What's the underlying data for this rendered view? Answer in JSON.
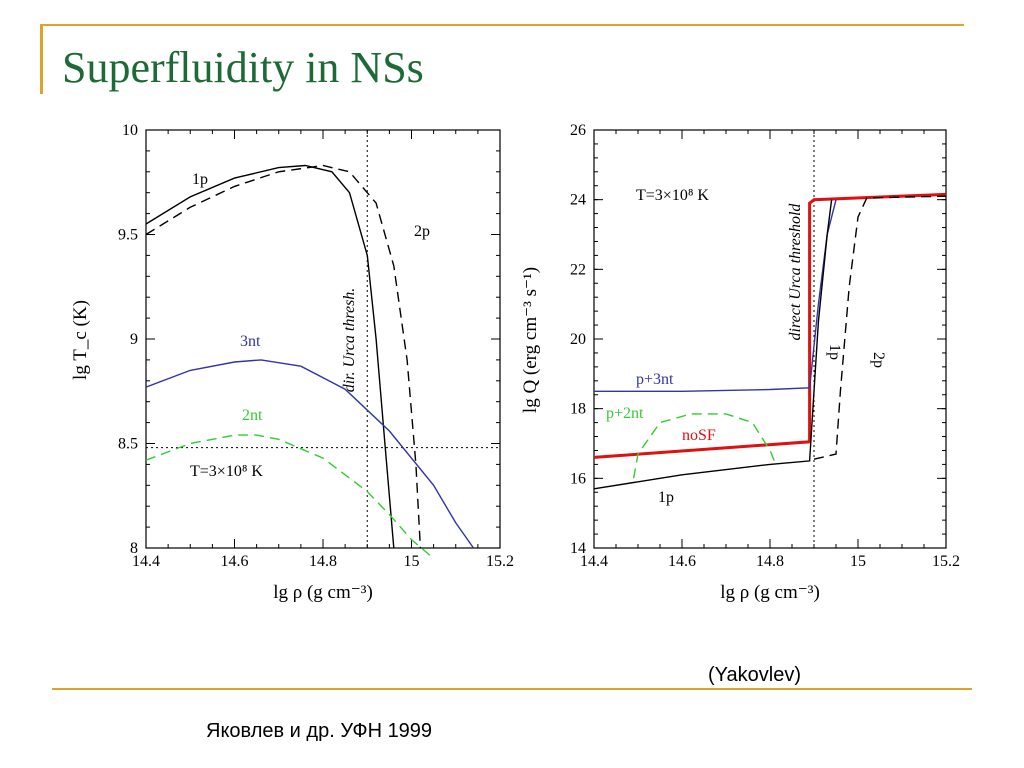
{
  "slide": {
    "title": "Superfluidity in NSs",
    "credit": "(Yakovlev)",
    "reference": "Яковлев и др. УФН 1999"
  },
  "colors": {
    "accent": "#e0a32a",
    "title": "#1e6a37",
    "blue": "#3333aa",
    "green": "#33cc33",
    "red": "#dd1111"
  },
  "chart_data": [
    {
      "type": "line",
      "xlabel": "lg ρ (g cm⁻³)",
      "ylabel": "lg T_c (K)",
      "xlim": [
        14.4,
        15.2
      ],
      "ylim": [
        8,
        10
      ],
      "xticks": [
        "14.4",
        "14.6",
        "14.8",
        "15",
        "15.2"
      ],
      "yticks": [
        "8",
        "8.5",
        "9",
        "9.5",
        "10"
      ],
      "annotations": {
        "temperature": "T=3×10⁸ K",
        "threshold": "dir. Urca thresh."
      },
      "threshold_x": 14.9,
      "hline_y": 8.48,
      "series": [
        {
          "name": "1p",
          "style": "solid",
          "color": "#000000",
          "x": [
            14.4,
            14.5,
            14.6,
            14.7,
            14.76,
            14.82,
            14.86,
            14.9,
            14.92,
            14.94,
            14.96
          ],
          "y": [
            9.55,
            9.68,
            9.77,
            9.82,
            9.83,
            9.8,
            9.7,
            9.4,
            9.0,
            8.5,
            8.0
          ]
        },
        {
          "name": "2p",
          "style": "dashed",
          "color": "#000000",
          "x": [
            14.4,
            14.5,
            14.6,
            14.7,
            14.8,
            14.86,
            14.92,
            14.96,
            14.99,
            15.01,
            15.02
          ],
          "y": [
            9.5,
            9.63,
            9.73,
            9.8,
            9.83,
            9.8,
            9.65,
            9.35,
            8.9,
            8.4,
            8.0
          ]
        },
        {
          "name": "3nt",
          "style": "solid",
          "color": "#3333aa",
          "x": [
            14.4,
            14.5,
            14.6,
            14.66,
            14.75,
            14.85,
            14.95,
            15.05,
            15.1,
            15.14
          ],
          "y": [
            8.77,
            8.85,
            8.89,
            8.9,
            8.87,
            8.76,
            8.56,
            8.3,
            8.12,
            8.0
          ]
        },
        {
          "name": "2nt",
          "style": "dashed",
          "color": "#33cc33",
          "x": [
            14.4,
            14.5,
            14.6,
            14.65,
            14.7,
            14.8,
            14.9,
            14.95,
            15.0,
            15.05
          ],
          "y": [
            8.42,
            8.5,
            8.54,
            8.54,
            8.52,
            8.43,
            8.27,
            8.16,
            8.04,
            7.95
          ]
        }
      ]
    },
    {
      "type": "line",
      "xlabel": "lg ρ (g cm⁻³)",
      "ylabel": "lg Q (erg cm⁻³ s⁻¹)",
      "xlim": [
        14.4,
        15.2
      ],
      "ylim": [
        14,
        26
      ],
      "xticks": [
        "14.4",
        "14.6",
        "14.8",
        "15",
        "15.2"
      ],
      "yticks": [
        "14",
        "16",
        "18",
        "20",
        "22",
        "24",
        "26"
      ],
      "annotations": {
        "temperature": "T=3×10⁸ K",
        "threshold": "direct Urca threshold"
      },
      "threshold_x": 14.9,
      "series": [
        {
          "name": "noSF",
          "style": "solid",
          "color": "#dd1111",
          "x": [
            14.4,
            14.89,
            14.89,
            14.9,
            15.2
          ],
          "y": [
            16.6,
            17.05,
            23.9,
            24.0,
            24.15
          ]
        },
        {
          "name": "p+3nt",
          "style": "solid",
          "color": "#3333aa",
          "x": [
            14.4,
            14.6,
            14.8,
            14.89,
            14.91,
            14.93,
            14.95
          ],
          "y": [
            18.5,
            18.5,
            18.55,
            18.6,
            21.0,
            23.0,
            24.0
          ]
        },
        {
          "name": "p+2nt",
          "style": "dashed",
          "color": "#33cc33",
          "x": [
            14.49,
            14.5,
            14.55,
            14.62,
            14.7,
            14.76,
            14.8,
            14.81
          ],
          "y": [
            16.0,
            16.7,
            17.6,
            17.85,
            17.85,
            17.6,
            16.8,
            16.5
          ]
        },
        {
          "name": "1p",
          "style": "solid",
          "color": "#000000",
          "x": [
            14.4,
            14.6,
            14.8,
            14.89,
            14.91,
            14.93,
            14.94
          ],
          "y": [
            15.7,
            16.1,
            16.4,
            16.5,
            20.5,
            23.0,
            24.0
          ]
        },
        {
          "name": "2p",
          "style": "dashed",
          "color": "#000000",
          "x": [
            14.9,
            14.95,
            14.96,
            14.98,
            15.0,
            15.02,
            15.2
          ],
          "y": [
            16.55,
            16.7,
            18.5,
            21.5,
            23.5,
            24.05,
            24.1
          ]
        }
      ]
    }
  ]
}
